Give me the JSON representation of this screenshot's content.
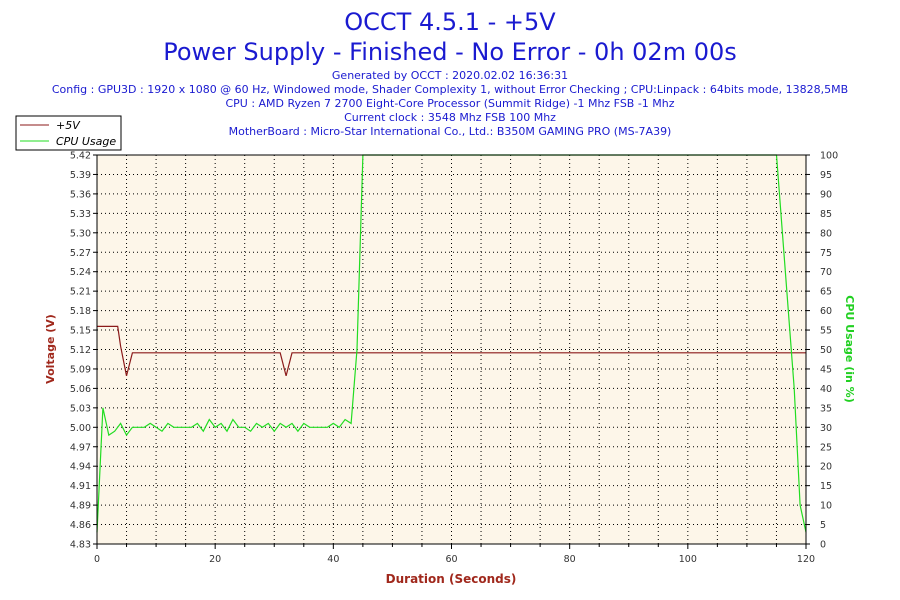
{
  "header": {
    "title": "OCCT 4.5.1 - +5V",
    "subtitle": "Power Supply - Finished - No Error - 0h 02m 00s",
    "info_lines": [
      "Generated by OCCT : 2020.02.02 16:36:31",
      "Config : GPU3D : 1920 x 1080 @ 60 Hz, Windowed mode, Shader Complexity 1, without Error Checking ; CPU:Linpack : 64bits mode, 13828,5MB",
      "CPU : AMD Ryzen 7 2700 Eight-Core Processor (Summit Ridge) -1 Mhz FSB -1 Mhz",
      "Current clock : 3548 Mhz FSB 100 Mhz",
      "MotherBoard : Micro-Star International Co., Ltd.: B350M GAMING PRO (MS-7A39)"
    ]
  },
  "colors": {
    "voltage": "#8b1a1a",
    "cpu": "#22dd22",
    "plot_bg": "#fdf6e9",
    "grid": "#000000",
    "title": "#1a1ad0"
  },
  "chart_data": {
    "type": "line",
    "xlabel": "Duration (Seconds)",
    "ylabel_left": "Voltage (V)",
    "ylabel_right": "CPU Usage (in %)",
    "xlim": [
      0,
      120
    ],
    "ylim_left": [
      4.83,
      5.42
    ],
    "ylim_right": [
      0,
      100
    ],
    "x_ticks": [
      0,
      20,
      40,
      60,
      80,
      100,
      120
    ],
    "y_left_ticks": [
      "4.83",
      "4.86",
      "4.89",
      "4.91",
      "4.94",
      "4.97",
      "5.00",
      "5.03",
      "5.06",
      "5.09",
      "5.12",
      "5.15",
      "5.18",
      "5.21",
      "5.24",
      "5.27",
      "5.30",
      "5.33",
      "5.36",
      "5.39",
      "5.42"
    ],
    "y_right_ticks": [
      0,
      5,
      10,
      15,
      20,
      25,
      30,
      35,
      40,
      45,
      50,
      55,
      60,
      65,
      70,
      75,
      80,
      85,
      90,
      95,
      100
    ],
    "grid": true,
    "legend_position": "top-left",
    "series": [
      {
        "name": "+5V",
        "axis": "left",
        "color": "#8b1a1a",
        "points": [
          [
            0,
            5.16
          ],
          [
            3.5,
            5.16
          ],
          [
            4,
            5.13
          ],
          [
            5,
            5.085
          ],
          [
            6,
            5.12
          ],
          [
            31,
            5.12
          ],
          [
            32,
            5.085
          ],
          [
            33,
            5.12
          ],
          [
            120,
            5.12
          ]
        ]
      },
      {
        "name": "CPU Usage",
        "axis": "right",
        "color": "#22dd22",
        "points": [
          [
            0,
            3
          ],
          [
            1,
            35
          ],
          [
            2,
            28
          ],
          [
            3,
            29
          ],
          [
            4,
            31
          ],
          [
            5,
            28
          ],
          [
            6,
            30
          ],
          [
            8,
            30
          ],
          [
            9,
            31
          ],
          [
            10,
            30
          ],
          [
            11,
            29
          ],
          [
            12,
            31
          ],
          [
            13,
            30
          ],
          [
            14,
            30
          ],
          [
            15,
            30
          ],
          [
            16,
            30
          ],
          [
            17,
            31
          ],
          [
            18,
            29
          ],
          [
            19,
            32
          ],
          [
            20,
            30
          ],
          [
            21,
            31
          ],
          [
            22,
            29
          ],
          [
            23,
            32
          ],
          [
            24,
            30
          ],
          [
            25,
            30
          ],
          [
            26,
            29
          ],
          [
            27,
            31
          ],
          [
            28,
            30
          ],
          [
            29,
            31
          ],
          [
            30,
            29
          ],
          [
            31,
            31
          ],
          [
            32,
            30
          ],
          [
            33,
            31
          ],
          [
            34,
            29
          ],
          [
            35,
            31
          ],
          [
            36,
            30
          ],
          [
            37,
            30
          ],
          [
            38,
            30
          ],
          [
            39,
            30
          ],
          [
            40,
            31
          ],
          [
            41,
            30
          ],
          [
            42,
            32
          ],
          [
            43,
            31
          ],
          [
            44,
            50
          ],
          [
            45,
            100
          ],
          [
            115,
            100
          ],
          [
            116,
            80
          ],
          [
            118,
            40
          ],
          [
            119,
            10
          ],
          [
            120,
            3
          ]
        ]
      }
    ]
  }
}
